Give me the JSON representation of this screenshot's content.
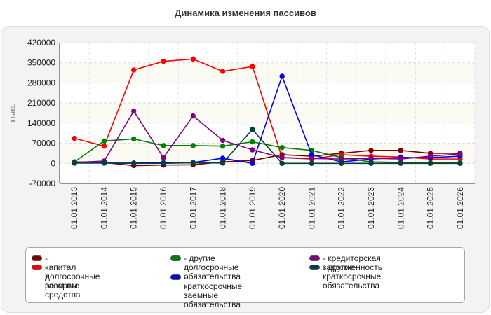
{
  "chart_data": {
    "type": "line",
    "title": "Динамика изменения пассивов",
    "ylabel": "тыс.",
    "xlabel": "",
    "ylim": [
      -70000,
      420000
    ],
    "yticks": [
      -70000,
      0,
      70000,
      140000,
      210000,
      280000,
      350000,
      420000
    ],
    "grid": true,
    "legend_position": "bottom",
    "x": [
      "01.01.2013",
      "01.01.2014",
      "01.01.2015",
      "01.01.2016",
      "01.01.2017",
      "01.01.2018",
      "01.01.2019",
      "01.01.2020",
      "01.01.2021",
      "01.01.2022",
      "01.01.2023",
      "01.01.2024",
      "01.01.2025",
      "01.01.2026"
    ],
    "series": [
      {
        "name": "- капитал и резервы",
        "color": "#7a0000",
        "values": [
          5000,
          3000,
          -8000,
          -6000,
          -5000,
          5000,
          10000,
          30000,
          25000,
          35000,
          45000,
          45000,
          35000,
          35000
        ]
      },
      {
        "name": "- долгосрочные заемные средства",
        "color": "#ff0000",
        "values": [
          87000,
          60000,
          325000,
          355000,
          363000,
          320000,
          337000,
          20000,
          15000,
          30000,
          25000,
          22000,
          15000,
          15000
        ]
      },
      {
        "name": "- другие долгосрочные обязательства",
        "color": "#008000",
        "values": [
          5000,
          78000,
          85000,
          62000,
          62000,
          60000,
          75000,
          55000,
          45000,
          20000,
          5000,
          3000,
          2000,
          2000
        ]
      },
      {
        "name": "- краткосрочные заемные обязательства",
        "color": "#0000ee",
        "values": [
          1000,
          1000,
          1000,
          2000,
          3000,
          18000,
          0,
          303000,
          30000,
          5000,
          15000,
          20000,
          20000,
          25000
        ]
      },
      {
        "name": "- кредиторская задолженность",
        "color": "#800080",
        "values": [
          3000,
          8000,
          182000,
          20000,
          165000,
          80000,
          47000,
          20000,
          17000,
          15000,
          18000,
          15000,
          25000,
          33000
        ]
      },
      {
        "name": "- другие краткосрочные обязательства",
        "color": "#004040",
        "values": [
          1000,
          1000,
          0,
          0,
          2000,
          1000,
          118000,
          0,
          0,
          0,
          0,
          0,
          0,
          0
        ]
      }
    ]
  },
  "legend": {
    "items": [
      {
        "label": "- капитал и резервы",
        "color": "#7a0000"
      },
      {
        "label": "- долгосрочные заемные\nсредства",
        "color": "#ff0000"
      },
      {
        "label": "- другие долгосрочные\nобязательства",
        "color": "#008000"
      },
      {
        "label": "- краткосрочные заемные\nобязательства",
        "color": "#0000ee"
      },
      {
        "label": "- кредиторская задолженность",
        "color": "#800080"
      },
      {
        "label": "- другие краткосрочные\nобязательства",
        "color": "#004040"
      }
    ]
  }
}
